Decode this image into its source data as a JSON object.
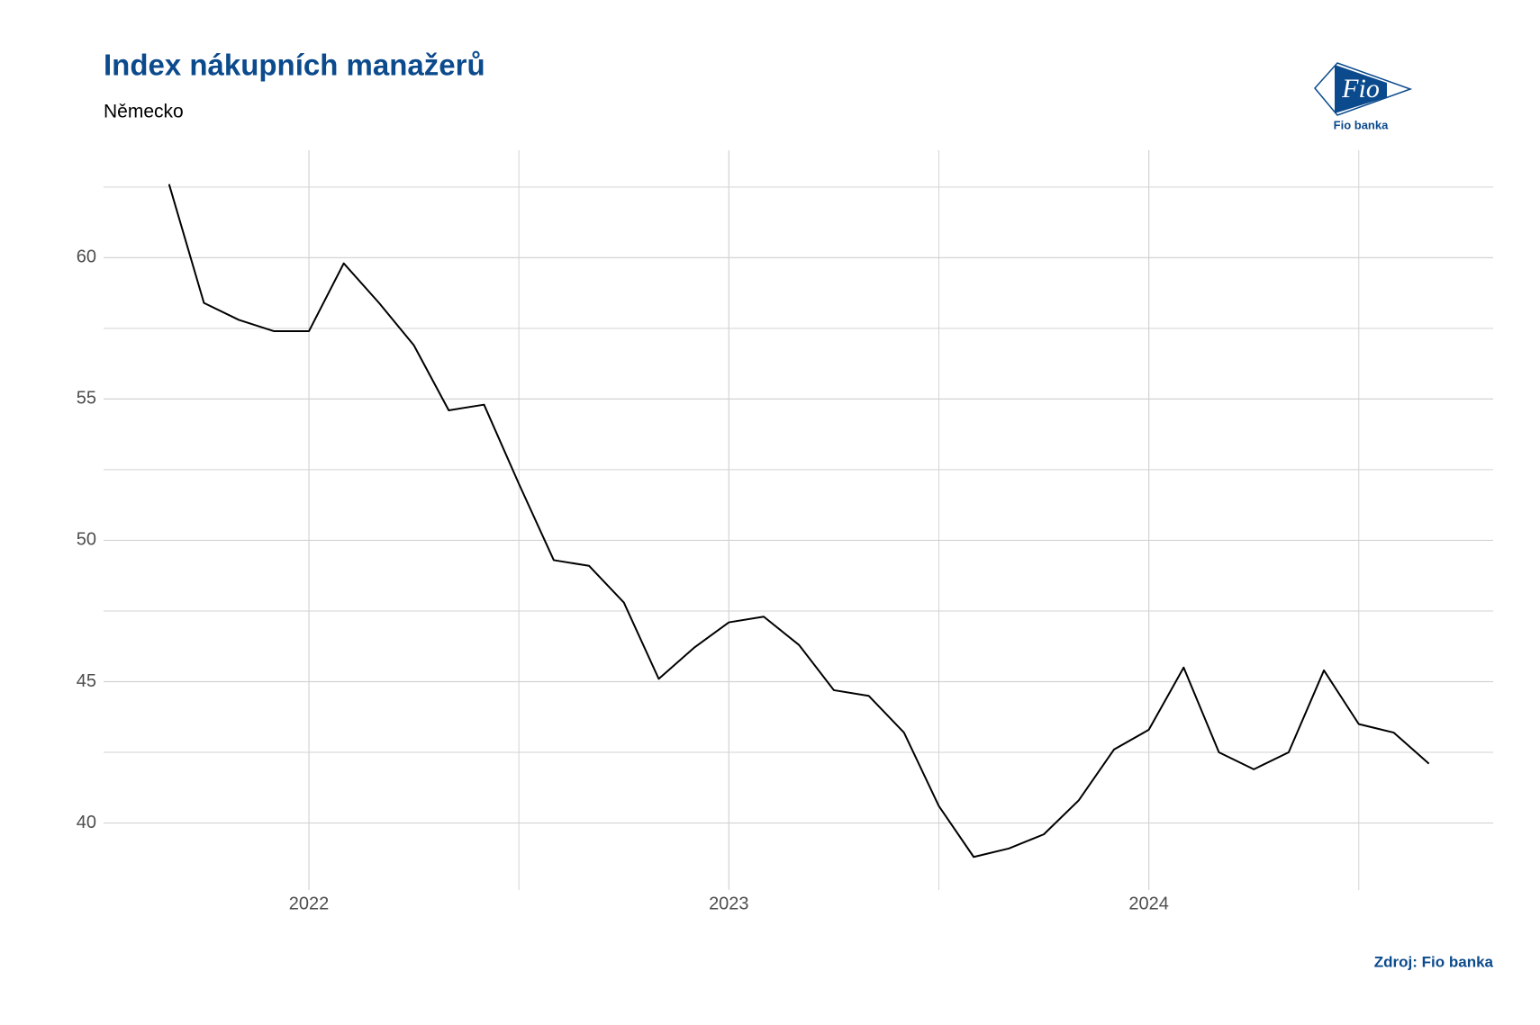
{
  "chart_data": {
    "type": "line",
    "title": "Index nákupních manažerů",
    "subtitle": "Německo",
    "source": "Zdroj: Fio banka",
    "logo_text": "Fio",
    "logo_caption": "Fio banka",
    "x": [
      2021.667,
      2021.75,
      2021.833,
      2021.917,
      2022,
      2022.083,
      2022.167,
      2022.25,
      2022.333,
      2022.417,
      2022.5,
      2022.583,
      2022.667,
      2022.75,
      2022.833,
      2022.917,
      2023,
      2023.083,
      2023.167,
      2023.25,
      2023.333,
      2023.417,
      2023.5,
      2023.583,
      2023.667,
      2023.75,
      2023.833,
      2023.917,
      2024,
      2024.083,
      2024.167,
      2024.25,
      2024.333,
      2024.417,
      2024.5,
      2024.583,
      2024.667
    ],
    "series": [
      {
        "name": "Německo",
        "color": "#000000",
        "values": [
          62.6,
          58.4,
          57.8,
          57.4,
          57.4,
          59.8,
          58.4,
          56.9,
          54.6,
          54.8,
          52.0,
          49.3,
          49.1,
          47.8,
          45.1,
          46.2,
          47.1,
          47.3,
          46.3,
          44.7,
          44.5,
          43.2,
          40.6,
          38.8,
          39.1,
          39.6,
          40.8,
          42.6,
          43.3,
          45.5,
          42.5,
          41.9,
          42.5,
          45.4,
          43.5,
          43.2,
          42.1
        ]
      }
    ],
    "xlim": [
      2021.511,
      2024.82
    ],
    "xticks": [
      2022,
      2023,
      2024
    ],
    "ylim": [
      37.63,
      63.8
    ],
    "yticks": [
      40,
      45,
      50,
      55,
      60
    ],
    "grid": true,
    "minor_grid": true
  }
}
